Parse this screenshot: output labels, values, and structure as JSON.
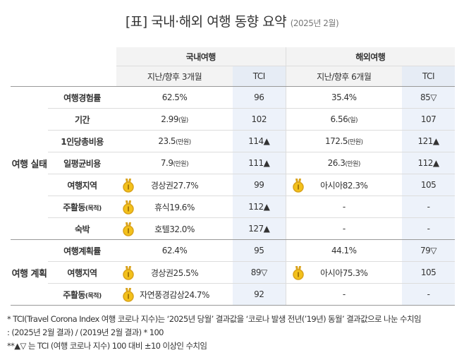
{
  "title": "[표] 국내·해외 여행 동향 요약",
  "title_note": "(2025년 2월)",
  "table": {
    "groups": [
      "국내여행",
      "해외여행"
    ],
    "subheaders": [
      "지난/향후 3개월",
      "TCI",
      "지난/향후 6개월",
      "TCI"
    ],
    "sections": [
      {
        "label": "여행 실태",
        "rows": [
          {
            "label": "여행경험률",
            "cells": [
              {
                "text": "62.5%"
              },
              {
                "text": "96"
              },
              {
                "text": "35.4%"
              },
              {
                "text": "85▽"
              }
            ]
          },
          {
            "label": "기간",
            "cells": [
              {
                "text": "2.99",
                "unit": "(일)"
              },
              {
                "text": "102"
              },
              {
                "text": "6.56",
                "unit": "(일)"
              },
              {
                "text": "107"
              }
            ]
          },
          {
            "label": "1인당총비용",
            "cells": [
              {
                "text": "23.5",
                "unit": "(만원)"
              },
              {
                "text": "114▲"
              },
              {
                "text": "172.5",
                "unit": "(만원)"
              },
              {
                "text": "121▲"
              }
            ]
          },
          {
            "label": "일평균비용",
            "cells": [
              {
                "text": "7.9",
                "unit": "(만원)"
              },
              {
                "text": "111▲"
              },
              {
                "text": "26.3",
                "unit": "(만원)"
              },
              {
                "text": "112▲"
              }
            ]
          },
          {
            "label": "여행지역",
            "cells": [
              {
                "text": "경상권27.7%",
                "medal": true
              },
              {
                "text": "99"
              },
              {
                "text": "아시아82.3%",
                "medal": true
              },
              {
                "text": "105"
              }
            ]
          },
          {
            "label": "주활동",
            "label_unit": "(목적)",
            "cells": [
              {
                "text": "휴식19.6%",
                "medal": true
              },
              {
                "text": "112▲"
              },
              {
                "text": "-"
              },
              {
                "text": "-"
              }
            ]
          },
          {
            "label": "숙박",
            "cells": [
              {
                "text": "호텔32.0%",
                "medal": true
              },
              {
                "text": "127▲"
              },
              {
                "text": "-"
              },
              {
                "text": "-"
              }
            ]
          }
        ]
      },
      {
        "label": "여행 계획",
        "rows": [
          {
            "label": "여행계획률",
            "cells": [
              {
                "text": "62.4%"
              },
              {
                "text": "95"
              },
              {
                "text": "44.1%"
              },
              {
                "text": "79▽"
              }
            ]
          },
          {
            "label": "여행지역",
            "cells": [
              {
                "text": "경상권25.5%",
                "medal": true
              },
              {
                "text": "89▽"
              },
              {
                "text": "아시아75.3%",
                "medal": true
              },
              {
                "text": "105"
              }
            ]
          },
          {
            "label": "주활동",
            "label_unit": "(목적)",
            "cells": [
              {
                "text": "자연풍경감상24.7%",
                "medal": true
              },
              {
                "text": "92"
              },
              {
                "text": "-"
              },
              {
                "text": "-"
              }
            ]
          }
        ]
      }
    ]
  },
  "footnotes": [
    "* TCI(Travel Corona Index 여행 코로나 지수)는 ‘2025년 당월’ 결과값을 ‘코로나 발생 전년(’19년) 동월’ 결과값으로 나눈 수치임",
    " : (2025년 2월 결과) / (2019년 2월 결과) * 100",
    "**▲▽ 는 TCI (여행 코로나 지수) 100 대비 ±10 이상인 수치임"
  ]
}
